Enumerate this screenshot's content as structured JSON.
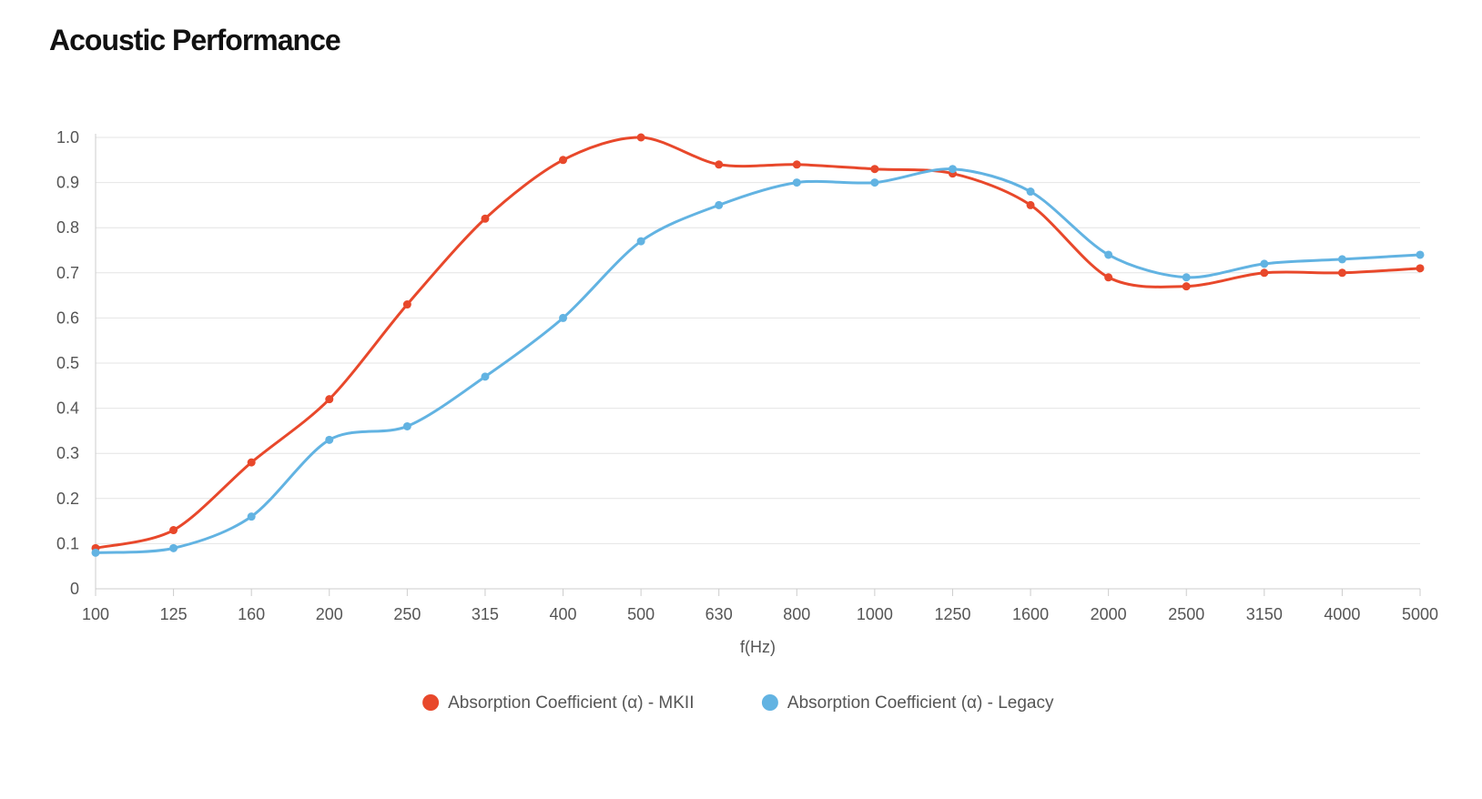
{
  "page": {
    "title": "Acoustic Performance"
  },
  "colors": {
    "mkii": "#e8482b",
    "legacy": "#62b3e2",
    "grid": "#e4e4e4",
    "axis": "#cccccc"
  },
  "chart_data": {
    "type": "line",
    "title": "",
    "xlabel": "f(Hz)",
    "ylabel": "",
    "ylim": [
      0,
      1.0
    ],
    "yticks": [
      "0",
      "0.1",
      "0.2",
      "0.3",
      "0.4",
      "0.5",
      "0.6",
      "0.7",
      "0.8",
      "0.9",
      "1.0"
    ],
    "categories": [
      "100",
      "125",
      "160",
      "200",
      "250",
      "315",
      "400",
      "500",
      "630",
      "800",
      "1000",
      "1250",
      "1600",
      "2000",
      "2500",
      "3150",
      "4000",
      "5000"
    ],
    "series": [
      {
        "name": "Absorption Coefficient (α) - MKII",
        "color_key": "mkii",
        "values": [
          0.09,
          0.13,
          0.28,
          0.42,
          0.63,
          0.82,
          0.95,
          1.0,
          0.94,
          0.94,
          0.93,
          0.92,
          0.85,
          0.69,
          0.67,
          0.7,
          0.7,
          0.71
        ]
      },
      {
        "name": "Absorption Coefficient (α) - Legacy",
        "color_key": "legacy",
        "values": [
          0.08,
          0.09,
          0.16,
          0.33,
          0.36,
          0.47,
          0.6,
          0.77,
          0.85,
          0.9,
          0.9,
          0.93,
          0.88,
          0.74,
          0.69,
          0.72,
          0.73,
          0.74
        ]
      }
    ],
    "legend_position": "bottom-center",
    "grid": true
  }
}
